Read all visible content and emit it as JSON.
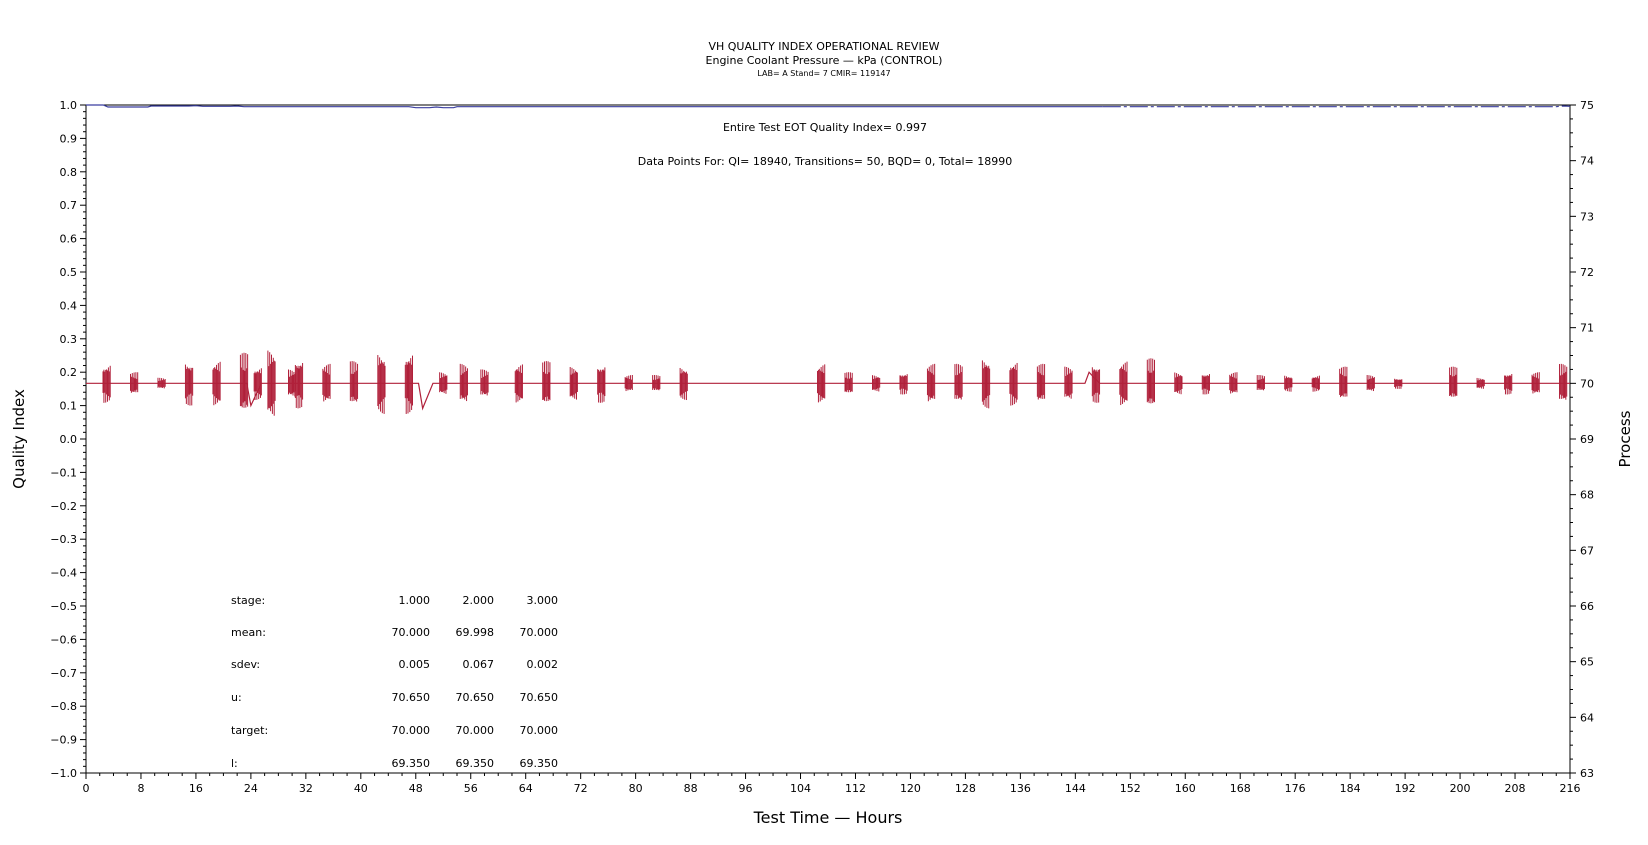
{
  "title": "VH QUALITY INDEX OPERATIONAL REVIEW",
  "subtitle": "Engine Coolant Pressure — kPa (CONTROL)",
  "lab_line": "LAB= A Stand= 7 CMIR= 119147",
  "annotations": {
    "qi_text": "Entire Test EOT Quality Index=   0.997",
    "points_text": "Data Points For: QI= 18940, Transitions=     50, BQD=      0, Total=  18990"
  },
  "stats_table": {
    "rows": [
      {
        "label": "stage:",
        "values": [
          "1.000",
          "2.000",
          "3.000"
        ]
      },
      {
        "label": "mean:",
        "values": [
          "70.000",
          "69.998",
          "70.000"
        ]
      },
      {
        "label": "sdev:",
        "values": [
          "0.005",
          "0.067",
          "0.002"
        ]
      },
      {
        "label": "u:",
        "values": [
          "70.650",
          "70.650",
          "70.650"
        ]
      },
      {
        "label": "target:",
        "values": [
          "70.000",
          "70.000",
          "70.000"
        ]
      },
      {
        "label": "l:",
        "values": [
          "69.350",
          "69.350",
          "69.350"
        ]
      }
    ]
  },
  "colors": {
    "quality_index": "#3b3fa0",
    "process": "#b0203a",
    "axis": "#000000"
  },
  "chart_data": {
    "type": "line",
    "title": "VH QUALITY INDEX OPERATIONAL REVIEW",
    "xlabel": "Test Time — Hours",
    "ylabel_left": "Quality Index",
    "ylabel_right": "Process",
    "xlim": [
      0,
      216
    ],
    "ylim_left": [
      -1.0,
      1.0
    ],
    "ylim_right": [
      63,
      75
    ],
    "x_ticks": [
      0,
      8,
      16,
      24,
      32,
      40,
      48,
      56,
      64,
      72,
      80,
      88,
      96,
      104,
      112,
      120,
      128,
      136,
      144,
      152,
      160,
      168,
      176,
      184,
      192,
      200,
      208,
      216
    ],
    "y_left_ticks": [
      "1.0",
      "0.9",
      "0.8",
      "0.7",
      "0.6",
      "0.5",
      "0.4",
      "0.3",
      "0.2",
      "0.1",
      "0.0",
      "−0.1",
      "−0.2",
      "−0.3",
      "−0.4",
      "−0.5",
      "−0.6",
      "−0.7",
      "−0.8",
      "−0.9",
      "−1.0"
    ],
    "y_right_ticks": [
      "75",
      "74",
      "73",
      "72",
      "71",
      "70",
      "69",
      "68",
      "67",
      "66",
      "65",
      "64",
      "63"
    ],
    "grid": false,
    "series": [
      {
        "axis": "left",
        "points": [
          [
            0,
            1.0
          ],
          [
            2.5,
            1.0
          ],
          [
            3.2,
            0.994
          ],
          [
            9,
            0.994
          ],
          [
            9.5,
            0.997
          ],
          [
            15,
            0.997
          ],
          [
            16,
            0.998
          ],
          [
            17,
            0.996
          ],
          [
            21,
            0.996
          ],
          [
            22,
            0.997
          ],
          [
            23,
            0.995
          ],
          [
            47,
            0.995
          ],
          [
            48,
            0.992
          ],
          [
            50,
            0.992
          ],
          [
            51,
            0.994
          ],
          [
            52,
            0.992
          ],
          [
            53.5,
            0.992
          ],
          [
            54,
            0.995
          ],
          [
            148,
            0.995
          ],
          [
            214,
            0.995
          ],
          [
            215,
            0.997
          ],
          [
            216,
            0.996
          ]
        ]
      },
      {
        "axis": "right",
        "baseline": 70.0,
        "oscillation_clusters": [
          {
            "x": 3,
            "amp": 0.35
          },
          {
            "x": 7,
            "amp": 0.2
          },
          {
            "x": 11,
            "amp": 0.1
          },
          {
            "x": 15,
            "amp": 0.4
          },
          {
            "x": 19,
            "amp": 0.4
          },
          {
            "x": 23,
            "amp": 0.55
          },
          {
            "x": 25,
            "amp": 0.3
          },
          {
            "x": 27,
            "amp": 0.6
          },
          {
            "x": 30,
            "amp": 0.25
          },
          {
            "x": 31,
            "amp": 0.45
          },
          {
            "x": 35,
            "amp": 0.35
          },
          {
            "x": 39,
            "amp": 0.4
          },
          {
            "x": 43,
            "amp": 0.55
          },
          {
            "x": 47,
            "amp": 0.55
          },
          {
            "x": 52,
            "amp": 0.2
          },
          {
            "x": 55,
            "amp": 0.35
          },
          {
            "x": 58,
            "amp": 0.25
          },
          {
            "x": 63,
            "amp": 0.35
          },
          {
            "x": 67,
            "amp": 0.4
          },
          {
            "x": 71,
            "amp": 0.3
          },
          {
            "x": 75,
            "amp": 0.35
          },
          {
            "x": 79,
            "amp": 0.15
          },
          {
            "x": 83,
            "amp": 0.15
          },
          {
            "x": 87,
            "amp": 0.3
          },
          {
            "x": 107,
            "amp": 0.35
          },
          {
            "x": 111,
            "amp": 0.2
          },
          {
            "x": 115,
            "amp": 0.15
          },
          {
            "x": 119,
            "amp": 0.2
          },
          {
            "x": 123,
            "amp": 0.35
          },
          {
            "x": 127,
            "amp": 0.35
          },
          {
            "x": 131,
            "amp": 0.45
          },
          {
            "x": 135,
            "amp": 0.4
          },
          {
            "x": 139,
            "amp": 0.35
          },
          {
            "x": 143,
            "amp": 0.3
          },
          {
            "x": 147,
            "amp": 0.35
          },
          {
            "x": 151,
            "amp": 0.4
          },
          {
            "x": 155,
            "amp": 0.45
          },
          {
            "x": 159,
            "amp": 0.2
          },
          {
            "x": 163,
            "amp": 0.2
          },
          {
            "x": 167,
            "amp": 0.2
          },
          {
            "x": 171,
            "amp": 0.15
          },
          {
            "x": 175,
            "amp": 0.15
          },
          {
            "x": 179,
            "amp": 0.15
          },
          {
            "x": 183,
            "amp": 0.3
          },
          {
            "x": 187,
            "amp": 0.15
          },
          {
            "x": 191,
            "amp": 0.1
          },
          {
            "x": 199,
            "amp": 0.3
          },
          {
            "x": 203,
            "amp": 0.1
          },
          {
            "x": 207,
            "amp": 0.2
          },
          {
            "x": 211,
            "amp": 0.2
          },
          {
            "x": 215,
            "amp": 0.35
          }
        ],
        "dips": [
          {
            "x": 24,
            "y": 69.6
          },
          {
            "x": 49,
            "y": 69.55
          },
          {
            "x": 146,
            "y": 70.2
          }
        ]
      }
    ]
  }
}
